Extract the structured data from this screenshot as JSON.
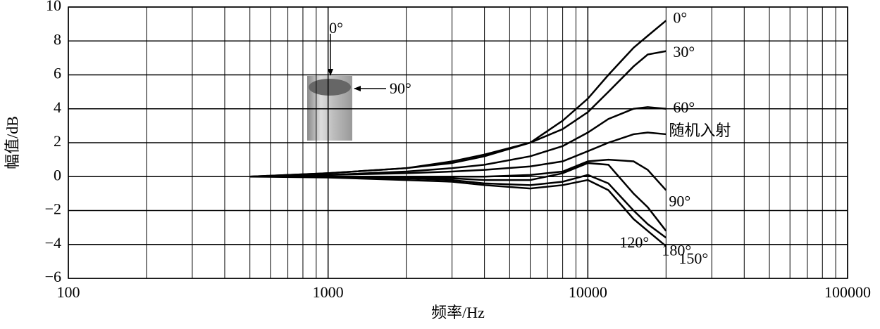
{
  "chart_data": {
    "type": "line",
    "x_label": "频率/Hz",
    "y_label": "幅值/dB",
    "log_x": true,
    "grid": true,
    "xlim": [
      100,
      100000
    ],
    "ylim": [
      -6,
      10
    ],
    "xticks": [
      100,
      1000,
      10000,
      100000
    ],
    "x_minor_ticks": [
      200,
      300,
      400,
      500,
      600,
      700,
      800,
      900,
      2000,
      3000,
      4000,
      5000,
      6000,
      7000,
      8000,
      9000,
      20000,
      30000,
      40000,
      50000,
      60000,
      70000,
      80000,
      90000
    ],
    "yticks": [
      {
        "value": -6,
        "label": "−6"
      },
      {
        "value": -4,
        "label": "−4"
      },
      {
        "value": -2,
        "label": "−2"
      },
      0,
      2,
      4,
      6,
      8,
      10
    ],
    "x": [
      500,
      1000,
      2000,
      3000,
      4000,
      6000,
      8000,
      10000,
      12000,
      15000,
      17000,
      20000
    ],
    "series": [
      {
        "name": "0°",
        "color": "#000000",
        "values": [
          0,
          0.2,
          0.5,
          0.8,
          1.2,
          2.0,
          3.3,
          4.6,
          6.0,
          7.6,
          8.3,
          9.2
        ]
      },
      {
        "name": "30°",
        "color": "#000000",
        "values": [
          0,
          0.2,
          0.5,
          0.9,
          1.3,
          2.0,
          2.8,
          3.8,
          5.0,
          6.5,
          7.2,
          7.4
        ]
      },
      {
        "name": "60°",
        "color": "#000000",
        "values": [
          0,
          0.1,
          0.3,
          0.5,
          0.7,
          1.2,
          1.8,
          2.6,
          3.4,
          4.0,
          4.1,
          4.0
        ]
      },
      {
        "name": "随机入射",
        "color": "#000000",
        "values": [
          0,
          0.1,
          0.2,
          0.3,
          0.4,
          0.6,
          0.9,
          1.5,
          2.0,
          2.5,
          2.6,
          2.5
        ]
      },
      {
        "name": "90°",
        "color": "#000000",
        "values": [
          0,
          0,
          0,
          0,
          0,
          0.1,
          0.3,
          0.9,
          1.0,
          0.9,
          0.4,
          -0.8
        ]
      },
      {
        "name": "180°",
        "color": "#000000",
        "values": [
          0,
          0,
          -0.1,
          -0.1,
          -0.2,
          -0.2,
          0.2,
          0.8,
          0.7,
          -1.0,
          -1.8,
          -3.2
        ]
      },
      {
        "name": "150°",
        "color": "#000000",
        "values": [
          0,
          0,
          -0.1,
          -0.2,
          -0.4,
          -0.5,
          -0.3,
          0.1,
          -0.4,
          -2.0,
          -2.8,
          -3.6
        ]
      },
      {
        "name": "120°",
        "color": "#000000",
        "values": [
          0,
          -0.05,
          -0.2,
          -0.3,
          -0.5,
          -0.7,
          -0.5,
          -0.2,
          -0.8,
          -2.5,
          -3.2,
          -4.1
        ]
      }
    ],
    "annotations": [
      "0°",
      "90°"
    ]
  }
}
